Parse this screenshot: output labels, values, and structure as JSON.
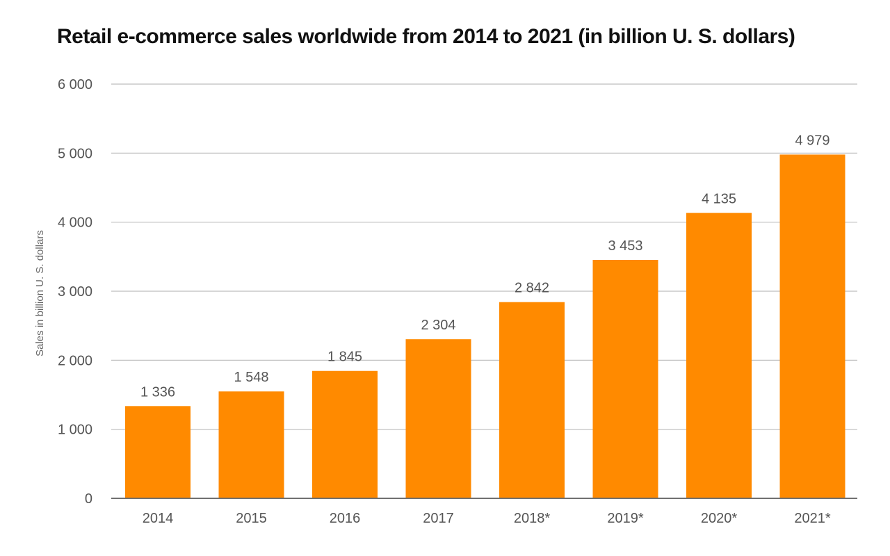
{
  "chart_data": {
    "type": "bar",
    "title": "Retail e-commerce sales worldwide from 2014 to 2021 (in billion U. S. dollars)",
    "xlabel": "",
    "ylabel": "Sales in billion U. S. dollars",
    "categories": [
      "2014",
      "2015",
      "2016",
      "2017",
      "2018*",
      "2019*",
      "2020*",
      "2021*"
    ],
    "values": [
      1336,
      1548,
      1845,
      2304,
      2842,
      3453,
      4135,
      4979
    ],
    "value_labels": [
      "1 336",
      "1 548",
      "1 845",
      "2 304",
      "2 842",
      "3 453",
      "4 135",
      "4 979"
    ],
    "ylim": [
      0,
      6000
    ],
    "yticks": [
      0,
      1000,
      2000,
      3000,
      4000,
      5000,
      6000
    ],
    "ytick_labels": [
      "0",
      "1 000",
      "2 000",
      "3 000",
      "4 000",
      "5 000",
      "6 000"
    ],
    "grid": true,
    "bar_color": "#FF8A00",
    "grid_color": "#BDBDBD",
    "axis_color": "#707070"
  }
}
